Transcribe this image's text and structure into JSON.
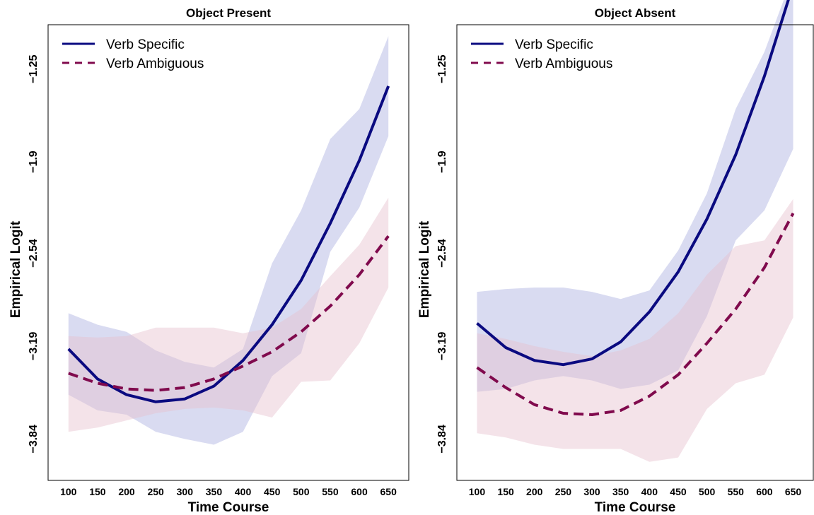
{
  "colors": {
    "specific": "#0a0a80",
    "ambiguous": "#800a4d",
    "specific_band": "#b9bde6",
    "ambiguous_band": "#e6c0cf"
  },
  "legend": {
    "specific": "Verb Specific",
    "ambiguous": "Verb Ambiguous"
  },
  "chart_data": [
    {
      "type": "line",
      "title": "Object Present",
      "xlabel": "Time Course",
      "ylabel": "Empirical Logit",
      "x": [
        100,
        150,
        200,
        250,
        300,
        350,
        400,
        450,
        500,
        550,
        600,
        650
      ],
      "xtick_labels": [
        "100",
        "150",
        "200",
        "250",
        "300",
        "350",
        "400",
        "450",
        "500",
        "550",
        "600",
        "650"
      ],
      "ytick_values": [
        -3.84,
        -3.19,
        -2.54,
        -1.9,
        -1.25
      ],
      "ytick_labels": [
        "−3.84",
        "−3.19",
        "−2.54",
        "−1.9",
        "−1.25"
      ],
      "xlim": [
        65,
        685
      ],
      "ylim": [
        -4.13,
        -0.94
      ],
      "legend_position": "top-left",
      "grid": false,
      "series": [
        {
          "name": "Verb Specific",
          "style": "solid",
          "values": [
            -3.21,
            -3.42,
            -3.53,
            -3.58,
            -3.56,
            -3.47,
            -3.29,
            -3.04,
            -2.73,
            -2.33,
            -1.89,
            -1.37
          ],
          "lower": [
            -3.53,
            -3.64,
            -3.67,
            -3.79,
            -3.84,
            -3.88,
            -3.79,
            -3.4,
            -3.24,
            -2.53,
            -2.22,
            -1.72
          ],
          "upper": [
            -2.96,
            -3.04,
            -3.09,
            -3.22,
            -3.3,
            -3.34,
            -3.21,
            -2.61,
            -2.24,
            -1.74,
            -1.53,
            -1.02
          ]
        },
        {
          "name": "Verb Ambiguous",
          "style": "dashed",
          "values": [
            -3.38,
            -3.45,
            -3.49,
            -3.5,
            -3.48,
            -3.42,
            -3.33,
            -3.23,
            -3.09,
            -2.91,
            -2.69,
            -2.42
          ],
          "lower": [
            -3.79,
            -3.76,
            -3.71,
            -3.66,
            -3.63,
            -3.62,
            -3.64,
            -3.69,
            -3.44,
            -3.43,
            -3.17,
            -2.78
          ],
          "upper": [
            -3.12,
            -3.13,
            -3.12,
            -3.06,
            -3.06,
            -3.06,
            -3.1,
            -3.06,
            -2.93,
            -2.7,
            -2.48,
            -2.15
          ]
        }
      ]
    },
    {
      "type": "line",
      "title": "Object Absent",
      "xlabel": "Time Course",
      "ylabel": "Empirical Logit",
      "x": [
        100,
        150,
        200,
        250,
        300,
        350,
        400,
        450,
        500,
        550,
        600,
        650
      ],
      "xtick_labels": [
        "100",
        "150",
        "200",
        "250",
        "300",
        "350",
        "400",
        "450",
        "500",
        "550",
        "600",
        "650"
      ],
      "ytick_values": [
        -3.84,
        -3.19,
        -2.54,
        -1.9,
        -1.25
      ],
      "ytick_labels": [
        "−3.84",
        "−3.19",
        "−2.54",
        "−1.9",
        "−1.25"
      ],
      "xlim": [
        65,
        685
      ],
      "ylim": [
        -4.13,
        -0.94
      ],
      "legend_position": "top-left",
      "grid": false,
      "series": [
        {
          "name": "Verb Specific",
          "style": "solid",
          "values": [
            -3.03,
            -3.2,
            -3.29,
            -3.32,
            -3.28,
            -3.16,
            -2.95,
            -2.67,
            -2.3,
            -1.85,
            -1.3,
            -0.66
          ],
          "lower": [
            -3.51,
            -3.49,
            -3.43,
            -3.4,
            -3.43,
            -3.49,
            -3.46,
            -3.36,
            -2.98,
            -2.45,
            -2.24,
            -1.81
          ],
          "upper": [
            -2.81,
            -2.79,
            -2.78,
            -2.78,
            -2.81,
            -2.86,
            -2.8,
            -2.52,
            -2.12,
            -1.53,
            -1.13,
            -0.59
          ]
        },
        {
          "name": "Verb Ambiguous",
          "style": "dashed",
          "values": [
            -3.34,
            -3.48,
            -3.6,
            -3.66,
            -3.67,
            -3.64,
            -3.54,
            -3.39,
            -3.17,
            -2.93,
            -2.64,
            -2.26
          ],
          "lower": [
            -3.8,
            -3.83,
            -3.88,
            -3.91,
            -3.91,
            -3.91,
            -4.0,
            -3.97,
            -3.63,
            -3.45,
            -3.39,
            -2.99
          ],
          "upper": [
            -3.1,
            -3.14,
            -3.19,
            -3.23,
            -3.26,
            -3.22,
            -3.14,
            -2.96,
            -2.69,
            -2.49,
            -2.45,
            -2.16
          ]
        }
      ]
    }
  ]
}
